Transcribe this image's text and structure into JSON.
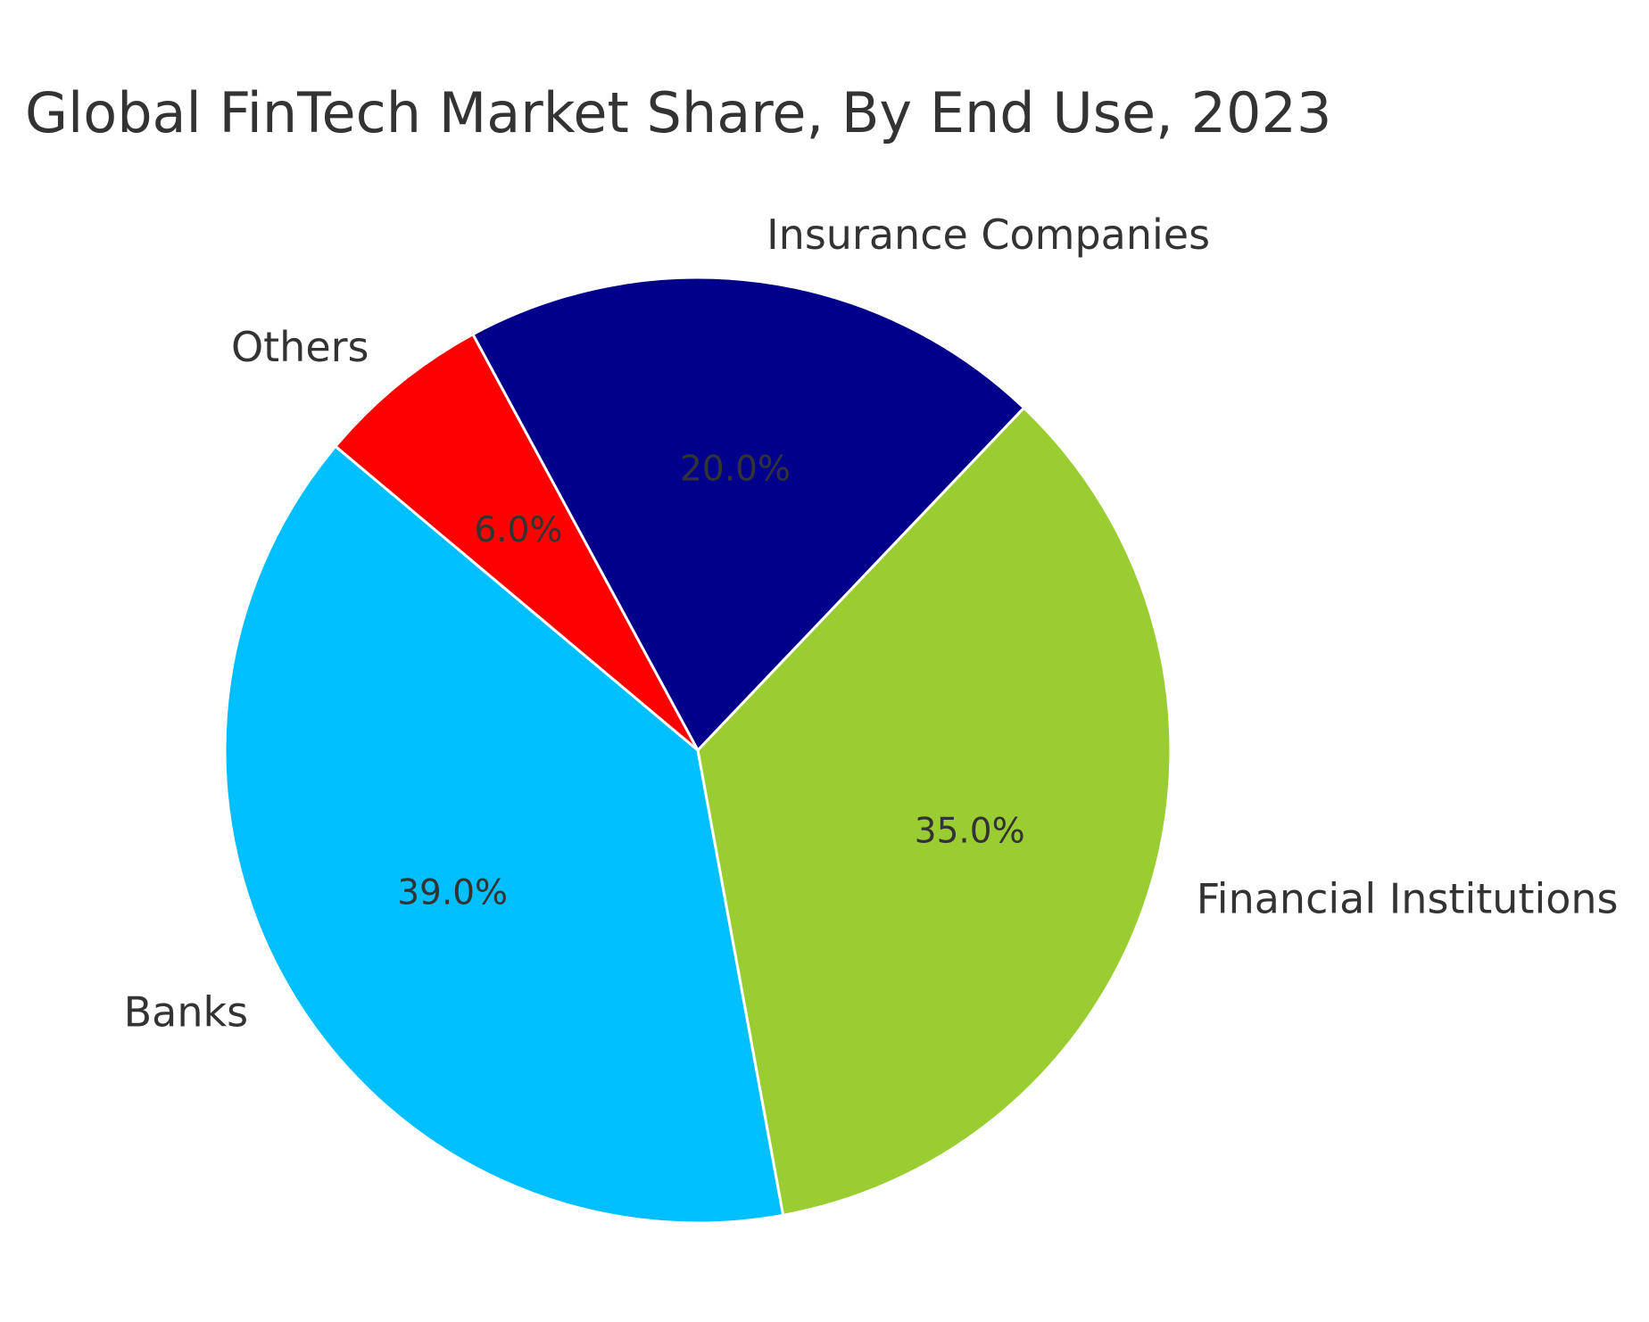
{
  "chart_data": {
    "type": "pie",
    "title": "Global FinTech Market Share, By End Use, 2023",
    "categories": [
      "Banks",
      "Financial Institutions",
      "Insurance Companies",
      "Others"
    ],
    "values": [
      39.0,
      35.0,
      20.0,
      6.0
    ],
    "value_labels": [
      "39.0%",
      "35.0%",
      "20.0%",
      "6.0%"
    ],
    "colors": [
      "#00BFFF",
      "#9ACD32",
      "#00008B",
      "#FF0000"
    ],
    "unit": "%",
    "legend": "none",
    "direction": "counterclockwise",
    "start_angle_deg": 140
  }
}
